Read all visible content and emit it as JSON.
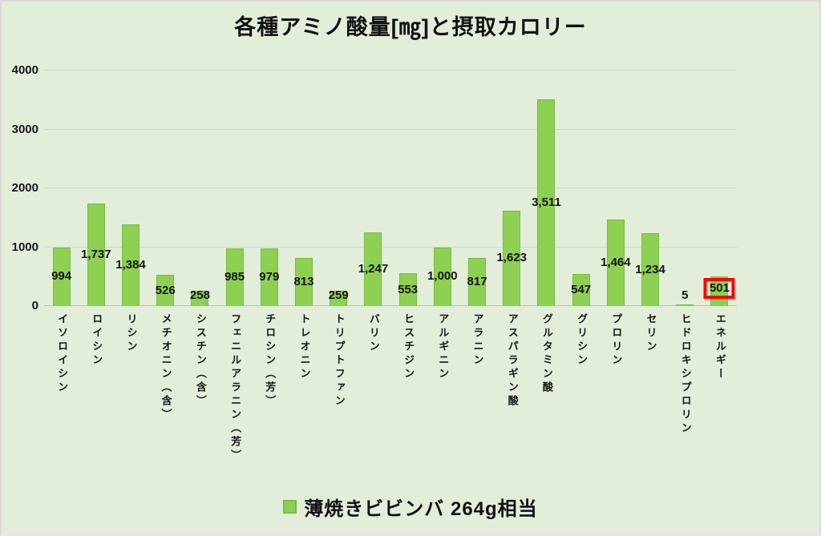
{
  "chart_data": {
    "type": "bar",
    "title": "各種アミノ酸量[㎎]と摂取カロリー",
    "categories": [
      "イソロイシン",
      "ロイシン",
      "リシン",
      "メチオニン（含）",
      "シスチン（含）",
      "フェニルアラニン（芳）",
      "チロシン（芳）",
      "トレオニン",
      "トリプトファン",
      "バリン",
      "ヒスチジン",
      "アルギニン",
      "アラニン",
      "アスパラギン酸",
      "グルタミン酸",
      "グリシン",
      "プロリン",
      "セリン",
      "ヒドロキシプロリン",
      "エネルギー"
    ],
    "values": [
      994,
      1737,
      1384,
      526,
      258,
      985,
      979,
      813,
      259,
      1247,
      553,
      1000,
      817,
      1623,
      3511,
      547,
      1464,
      1234,
      5,
      501
    ],
    "value_labels": [
      "994",
      "1,737",
      "1,384",
      "526",
      "258",
      "985",
      "979",
      "813",
      "259",
      "1,247",
      "553",
      "1,000",
      "817",
      "1,623",
      "3,511",
      "547",
      "1,464",
      "1,234",
      "5",
      "501"
    ],
    "ylim": [
      0,
      4000
    ],
    "yticks": [
      0,
      1000,
      2000,
      3000,
      4000
    ],
    "grid": "horizontal",
    "legend": "薄焼きビビンバ 264g相当",
    "legend_position": "bottom",
    "series_name": "薄焼きビビンバ 264g相当",
    "bar_color": "#8ed052",
    "bar_border_color": "#79bb45",
    "background_color": "#e2eeda",
    "highlight": {
      "index": 19,
      "label": "501",
      "box_color": "#ff0000"
    }
  }
}
